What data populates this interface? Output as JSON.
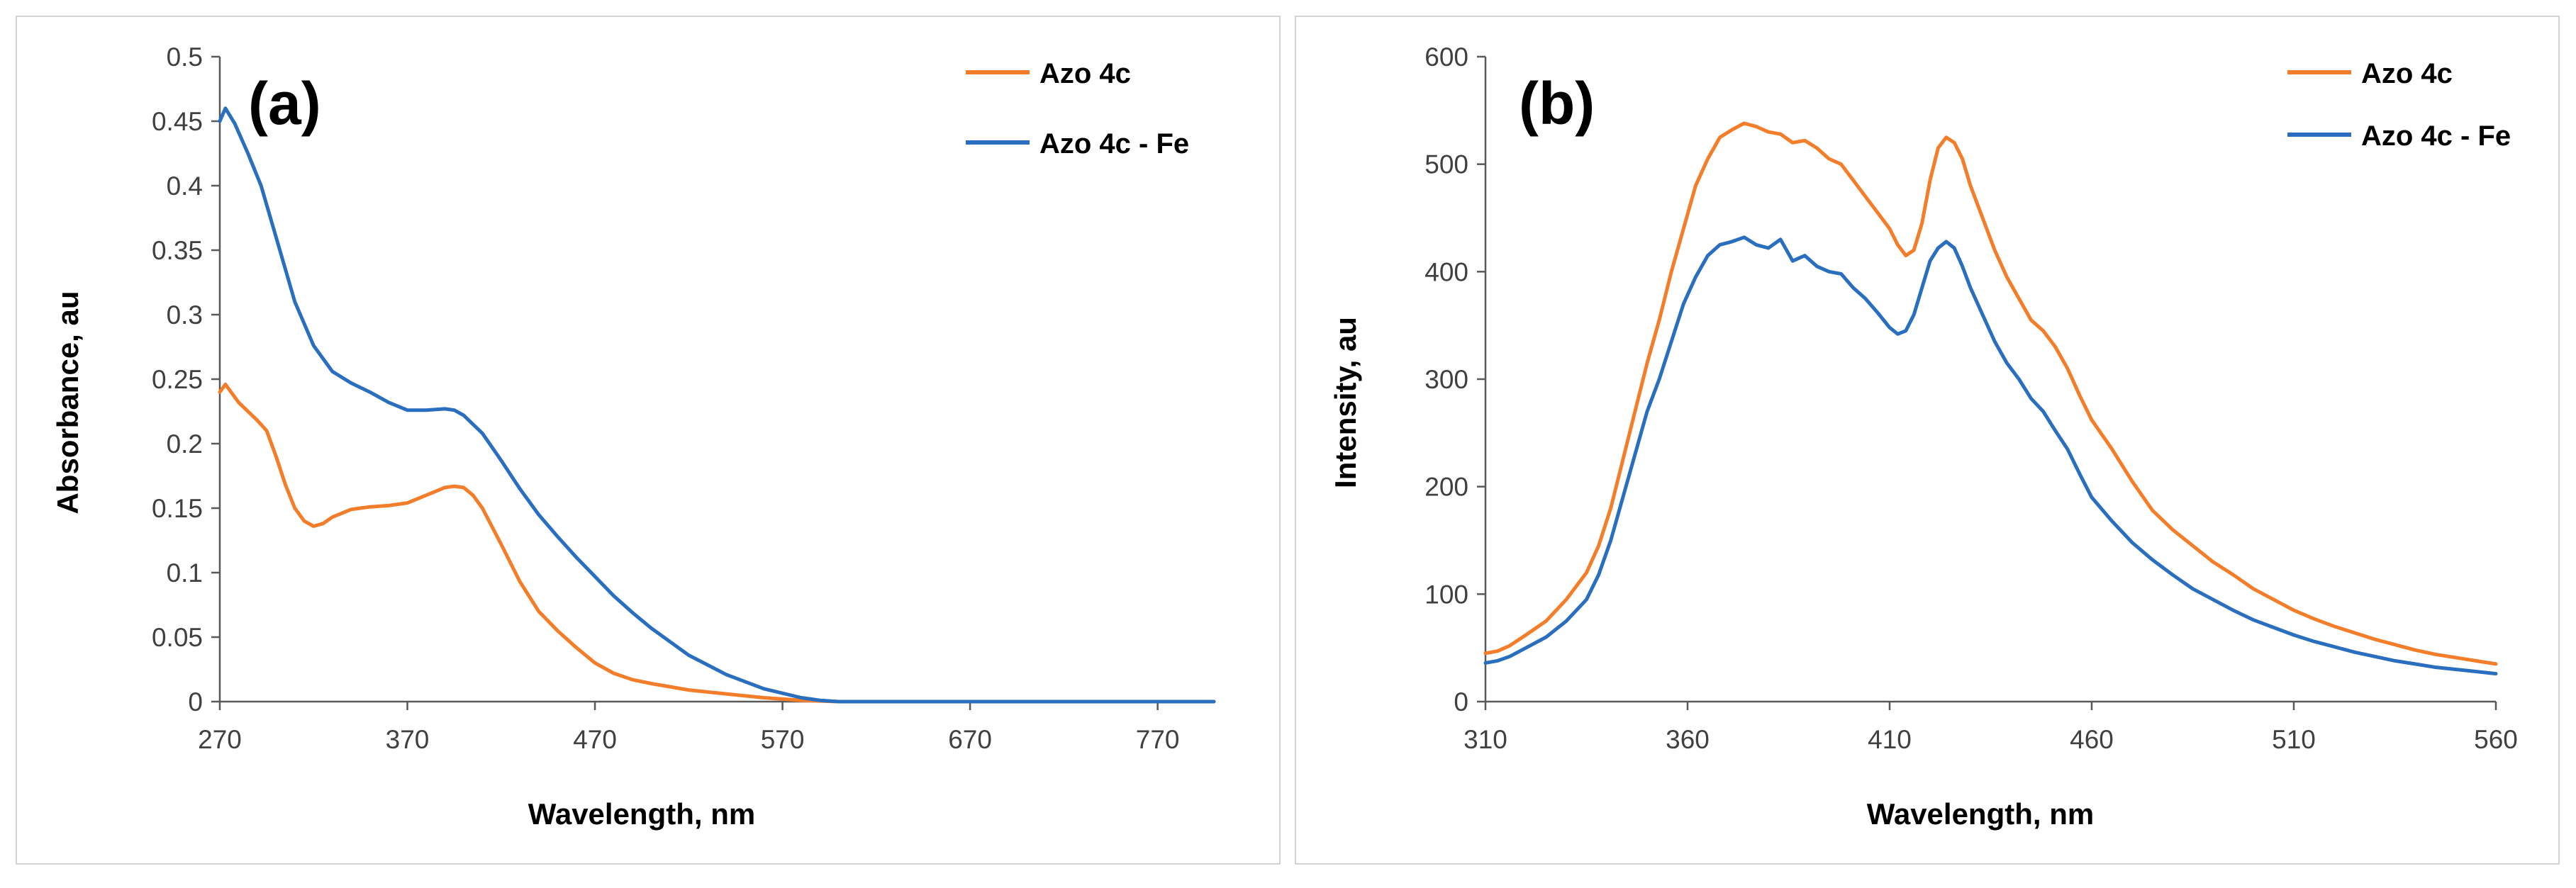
{
  "colors": {
    "orange": "#f47d2a",
    "blue": "#2a6fbf",
    "axis": "#595959"
  },
  "chart_data": [
    {
      "type": "line",
      "panel": "(a)",
      "title": "",
      "xlabel": "Wavelength, nm",
      "ylabel": "Absorbance, au",
      "xlim": [
        270,
        800
      ],
      "ylim": [
        0,
        0.5
      ],
      "xticks": [
        270,
        370,
        470,
        570,
        670,
        770
      ],
      "yticks": [
        0,
        0.05,
        0.1,
        0.15,
        0.2,
        0.25,
        0.3,
        0.35,
        0.4,
        0.45,
        0.5
      ],
      "ytick_labels": [
        "0",
        "0.05",
        "0.1",
        "0.15",
        "0.2",
        "0.25",
        "0.3",
        "0.35",
        "0.4",
        "0.45",
        "0.5"
      ],
      "grid": false,
      "legend_position": "top-right",
      "series": [
        {
          "name": "Azo 4c",
          "color": "#f47d2a",
          "x": [
            270,
            273,
            280,
            290,
            295,
            300,
            305,
            310,
            315,
            320,
            325,
            330,
            340,
            350,
            360,
            370,
            380,
            390,
            395,
            400,
            405,
            410,
            420,
            430,
            440,
            450,
            460,
            470,
            480,
            490,
            500,
            520,
            540,
            560,
            580,
            590,
            600,
            650,
            700,
            750,
            800
          ],
          "y": [
            0.24,
            0.246,
            0.232,
            0.218,
            0.21,
            0.19,
            0.168,
            0.15,
            0.14,
            0.136,
            0.138,
            0.143,
            0.149,
            0.151,
            0.152,
            0.154,
            0.16,
            0.166,
            0.167,
            0.166,
            0.16,
            0.15,
            0.122,
            0.093,
            0.07,
            0.055,
            0.042,
            0.03,
            0.022,
            0.017,
            0.014,
            0.009,
            0.006,
            0.003,
            0.001,
            0.0005,
            0,
            0,
            0,
            0,
            0
          ]
        },
        {
          "name": "Azo 4c - Fe",
          "color": "#2a6fbf",
          "x": [
            270,
            273,
            278,
            285,
            292,
            300,
            310,
            320,
            330,
            340,
            350,
            360,
            370,
            380,
            390,
            395,
            400,
            410,
            420,
            430,
            440,
            450,
            460,
            470,
            480,
            490,
            500,
            520,
            540,
            560,
            580,
            590,
            600,
            650,
            700,
            750,
            800
          ],
          "y": [
            0.45,
            0.46,
            0.448,
            0.425,
            0.4,
            0.36,
            0.31,
            0.276,
            0.256,
            0.247,
            0.24,
            0.232,
            0.226,
            0.226,
            0.227,
            0.226,
            0.222,
            0.208,
            0.187,
            0.165,
            0.145,
            0.128,
            0.112,
            0.097,
            0.082,
            0.069,
            0.057,
            0.036,
            0.021,
            0.01,
            0.003,
            0.001,
            0,
            0,
            0,
            0,
            0
          ]
        }
      ]
    },
    {
      "type": "line",
      "panel": "(b)",
      "title": "",
      "xlabel": "Wavelength, nm",
      "ylabel": "Intensity, au",
      "xlim": [
        310,
        560
      ],
      "ylim": [
        0,
        600
      ],
      "xticks": [
        310,
        360,
        410,
        460,
        510,
        560
      ],
      "yticks": [
        0,
        100,
        200,
        300,
        400,
        500,
        600
      ],
      "ytick_labels": [
        "0",
        "100",
        "200",
        "300",
        "400",
        "500",
        "600"
      ],
      "grid": false,
      "legend_position": "top-right",
      "series": [
        {
          "name": "Azo 4c",
          "color": "#f47d2a",
          "x": [
            310,
            313,
            316,
            320,
            325,
            330,
            335,
            338,
            341,
            344,
            347,
            350,
            353,
            356,
            359,
            362,
            365,
            368,
            371,
            374,
            377,
            380,
            383,
            386,
            389,
            392,
            395,
            398,
            401,
            404,
            407,
            410,
            412,
            414,
            416,
            418,
            420,
            422,
            424,
            426,
            428,
            430,
            433,
            436,
            439,
            442,
            445,
            448,
            451,
            454,
            457,
            460,
            465,
            470,
            475,
            480,
            485,
            490,
            495,
            500,
            505,
            510,
            515,
            520,
            525,
            530,
            535,
            540,
            545,
            550,
            555,
            560
          ],
          "y": [
            45,
            47,
            52,
            62,
            75,
            95,
            120,
            145,
            180,
            225,
            270,
            315,
            355,
            400,
            440,
            480,
            505,
            525,
            532,
            538,
            535,
            530,
            528,
            520,
            522,
            515,
            505,
            500,
            485,
            470,
            455,
            440,
            425,
            415,
            420,
            445,
            485,
            515,
            525,
            520,
            505,
            480,
            450,
            420,
            395,
            375,
            355,
            345,
            330,
            310,
            285,
            262,
            235,
            205,
            178,
            160,
            145,
            130,
            118,
            105,
            95,
            85,
            77,
            70,
            64,
            58,
            53,
            48,
            44,
            41,
            38,
            35
          ]
        },
        {
          "name": "Azo 4c - Fe",
          "color": "#2a6fbf",
          "x": [
            310,
            313,
            316,
            320,
            325,
            330,
            335,
            338,
            341,
            344,
            347,
            350,
            353,
            356,
            359,
            362,
            365,
            368,
            371,
            374,
            377,
            380,
            383,
            386,
            389,
            392,
            395,
            398,
            401,
            404,
            407,
            410,
            412,
            414,
            416,
            418,
            420,
            422,
            424,
            426,
            428,
            430,
            433,
            436,
            439,
            442,
            445,
            448,
            451,
            454,
            457,
            460,
            465,
            470,
            475,
            480,
            485,
            490,
            495,
            500,
            505,
            510,
            515,
            520,
            525,
            530,
            535,
            540,
            545,
            550,
            555,
            560
          ],
          "y": [
            36,
            38,
            42,
            50,
            60,
            75,
            95,
            118,
            150,
            190,
            230,
            270,
            300,
            335,
            370,
            395,
            415,
            425,
            428,
            432,
            425,
            422,
            430,
            410,
            415,
            405,
            400,
            398,
            385,
            375,
            362,
            348,
            342,
            345,
            360,
            385,
            410,
            422,
            428,
            422,
            405,
            385,
            360,
            335,
            315,
            300,
            282,
            270,
            252,
            235,
            212,
            190,
            168,
            148,
            132,
            118,
            105,
            95,
            85,
            76,
            69,
            62,
            56,
            51,
            46,
            42,
            38,
            35,
            32,
            30,
            28,
            26
          ]
        }
      ]
    }
  ]
}
